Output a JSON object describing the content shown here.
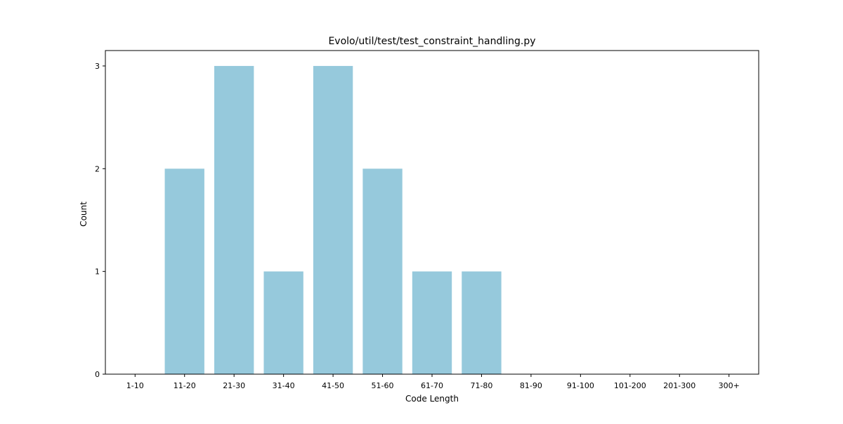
{
  "chart_data": {
    "type": "bar",
    "title": "Evolo/util/test/test_constraint_handling.py",
    "xlabel": "Code Length",
    "ylabel": "Count",
    "categories": [
      "1-10",
      "11-20",
      "21-30",
      "31-40",
      "41-50",
      "51-60",
      "61-70",
      "71-80",
      "81-90",
      "91-100",
      "101-200",
      "201-300",
      "300+"
    ],
    "values": [
      0,
      2,
      3,
      1,
      3,
      2,
      1,
      1,
      0,
      0,
      0,
      0,
      0
    ],
    "ylim": [
      0,
      3.15
    ],
    "yticks": [
      0,
      1,
      2,
      3
    ],
    "grid": false,
    "legend": "none",
    "bar_color": "#96c9dc"
  }
}
